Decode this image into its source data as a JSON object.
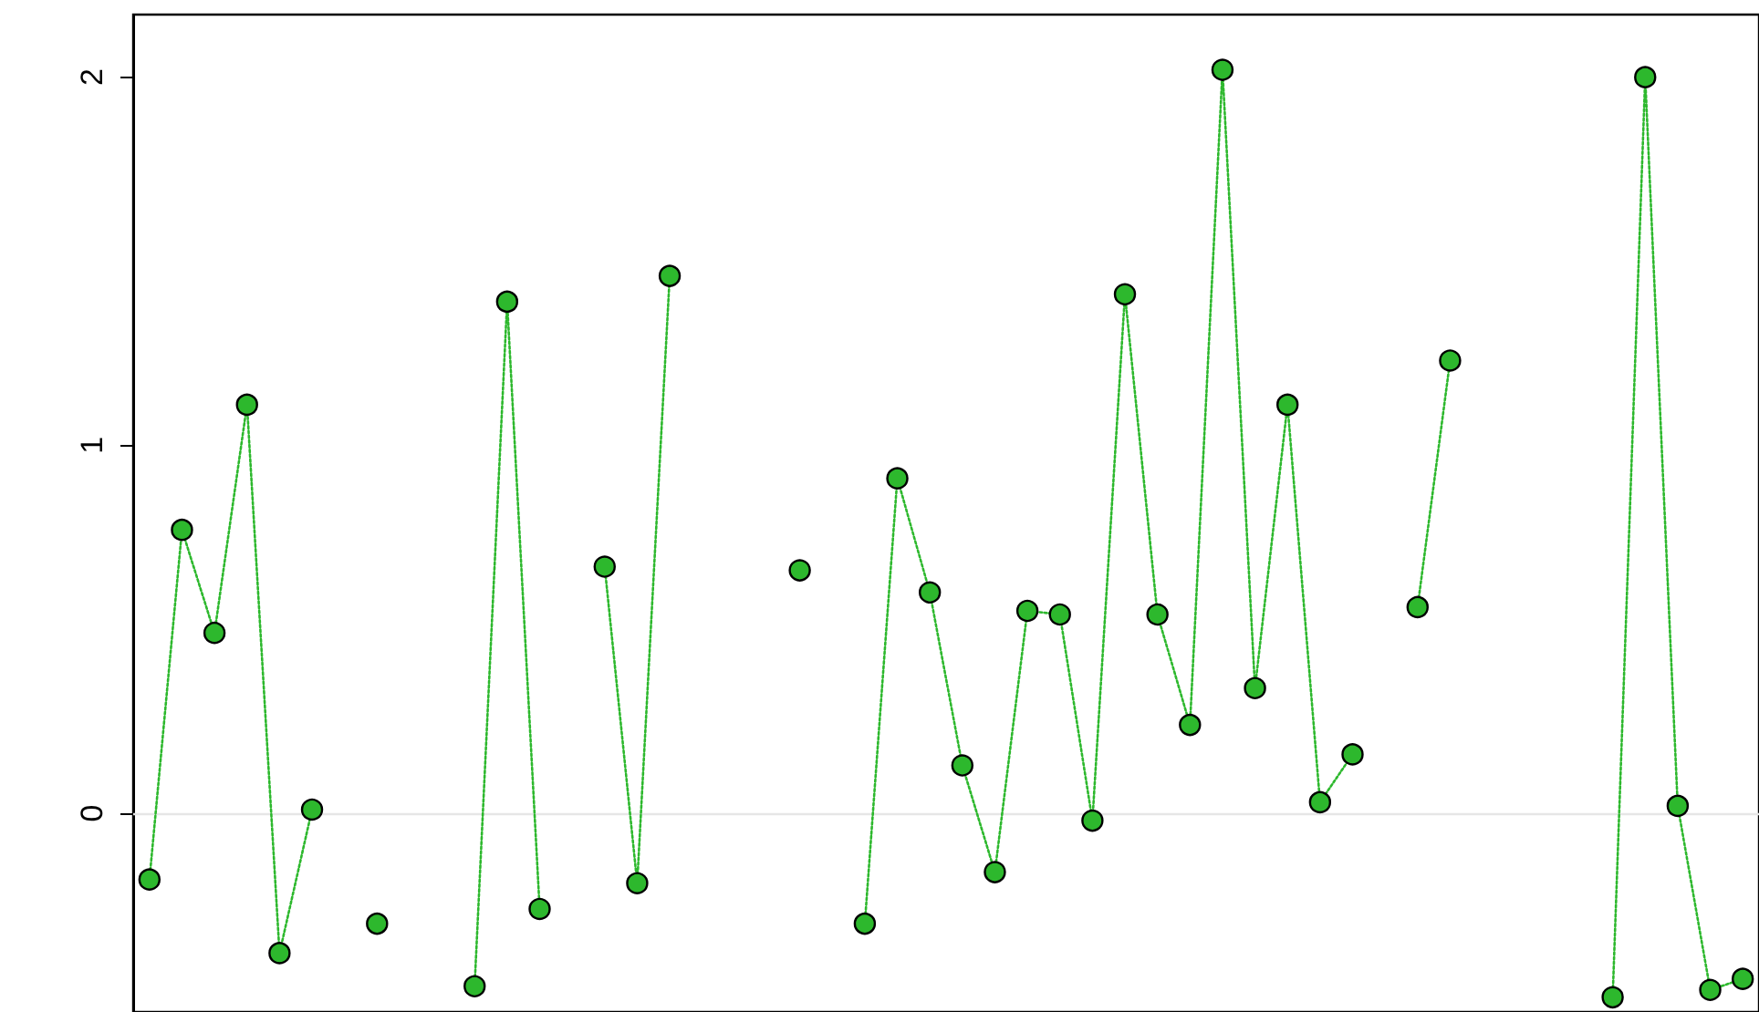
{
  "chart_data": {
    "type": "line",
    "categories": [
      null,
      null,
      null,
      null,
      null,
      null,
      null,
      null,
      null,
      null,
      null,
      null,
      null,
      null,
      null,
      null,
      null,
      null,
      null,
      null,
      null,
      null,
      null,
      null,
      null,
      null,
      null,
      null,
      null,
      null,
      null,
      null,
      null,
      null,
      null,
      null,
      null,
      null,
      null,
      null,
      null,
      null,
      null,
      null,
      null,
      null,
      null,
      null,
      null,
      null
    ],
    "series": [
      {
        "color": "#2db82d",
        "values": [
          -0.18,
          0.77,
          0.49,
          1.11,
          -0.38,
          0.01,
          null,
          -0.3,
          null,
          null,
          -0.47,
          1.39,
          -0.26,
          null,
          0.67,
          -0.19,
          1.46,
          null,
          null,
          null,
          0.66,
          null,
          -0.3,
          0.91,
          0.6,
          0.13,
          -0.16,
          0.55,
          0.54,
          -0.02,
          1.41,
          0.54,
          0.24,
          2.02,
          0.34,
          1.11,
          0.03,
          0.16,
          null,
          0.56,
          1.23,
          null,
          null,
          null,
          null,
          -0.5,
          2.0,
          0.02,
          -0.48,
          -0.45
        ]
      }
    ],
    "ylim": [
      -0.54,
      2.17
    ],
    "yticks": [
      0,
      1,
      2
    ],
    "tick_labels": "y",
    "marker": "circle",
    "line_style": "dotted",
    "ref_lines": [
      {
        "axis": "y",
        "value": 0,
        "color": "#e6e6e6"
      }
    ]
  }
}
